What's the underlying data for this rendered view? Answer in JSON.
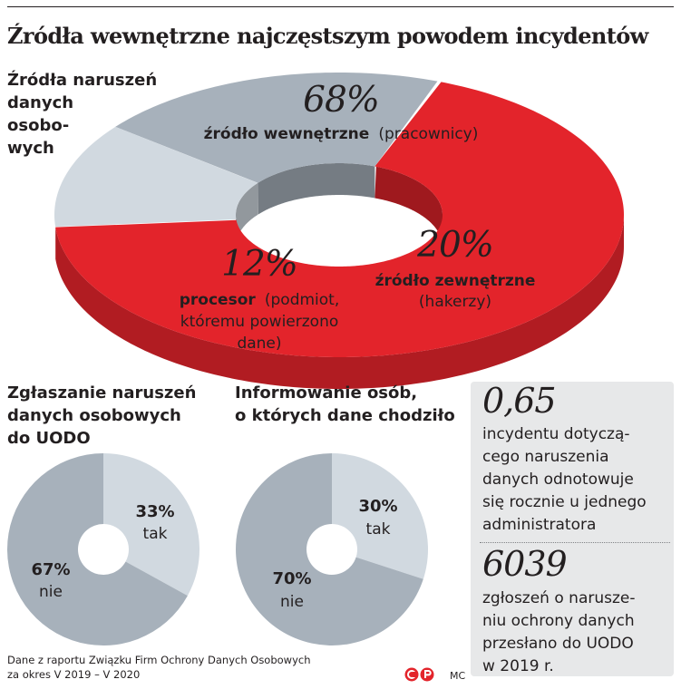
{
  "title": "Źródła wewnętrzne najczęstszym powodem incydentów",
  "main_chart": {
    "label_lines": [
      "Źródła naruszeń",
      "danych",
      "osobo-",
      "wych"
    ]
  },
  "chart_data": [
    {
      "type": "pie",
      "title": "Źródła naruszeń danych osobowych",
      "slices": [
        {
          "value": 68,
          "pct_label": "68%",
          "bold": "źródło wewnętrzne",
          "normal": "(pracownicy)",
          "color": "#e3242b"
        },
        {
          "value": 20,
          "pct_label": "20%",
          "bold": "źródło zewnętrzne",
          "normal": "(hakerzy)",
          "color": "#a7b1bb"
        },
        {
          "value": 12,
          "pct_label": "12%",
          "bold": "procesor",
          "normal": "(podmiot, któremu powierzono dane)",
          "color": "#d1d9e0"
        }
      ]
    },
    {
      "type": "pie",
      "title": "Zgłaszanie naruszeń danych osobowych do UODO",
      "slices": [
        {
          "value": 33,
          "pct_label": "33%",
          "label": "tak",
          "color": "#d1d9e0"
        },
        {
          "value": 67,
          "pct_label": "67%",
          "label": "nie",
          "color": "#a7b1bb"
        }
      ]
    },
    {
      "type": "pie",
      "title": "Informowanie osób, o których dane chodziło",
      "slices": [
        {
          "value": 30,
          "pct_label": "30%",
          "label": "tak",
          "color": "#d1d9e0"
        },
        {
          "value": 70,
          "pct_label": "70%",
          "label": "nie",
          "color": "#a7b1bb"
        }
      ]
    }
  ],
  "main_labels": {
    "s1_line2": "źródło wewnętrzne",
    "s1_line2b": "(pracownicy)",
    "s2_line2": "źródło zewnętrzne",
    "s2_line3": "(hakerzy)",
    "s3_line2": "procesor",
    "s3_line2b": "(podmiot,",
    "s3_line3": "któremu powierzono",
    "s3_line4": "dane)"
  },
  "pie2": {
    "title_lines": [
      "Zgłaszanie naruszeń",
      "danych osobowych",
      "do UODO"
    ]
  },
  "pie3": {
    "title_lines": [
      "Informowanie osób,",
      "o których dane chodziło"
    ]
  },
  "stats": [
    {
      "value": "0,65",
      "text_lines": [
        "incydentu dotyczą-",
        "cego naruszenia",
        "danych odnotowuje",
        "się rocznie u jednego",
        "administratora"
      ]
    },
    {
      "value": "6039",
      "text_lines": [
        "zgłoszeń o narusze-",
        "niu ochrony danych",
        "przesłano do UODO",
        "w 2019 r."
      ]
    }
  ],
  "source_lines": [
    "Dane z raportu Związku Firm Ochrony Danych Osobowych",
    "za okres V 2019 – V 2020"
  ],
  "credit": "MC",
  "logo_text": "CP"
}
